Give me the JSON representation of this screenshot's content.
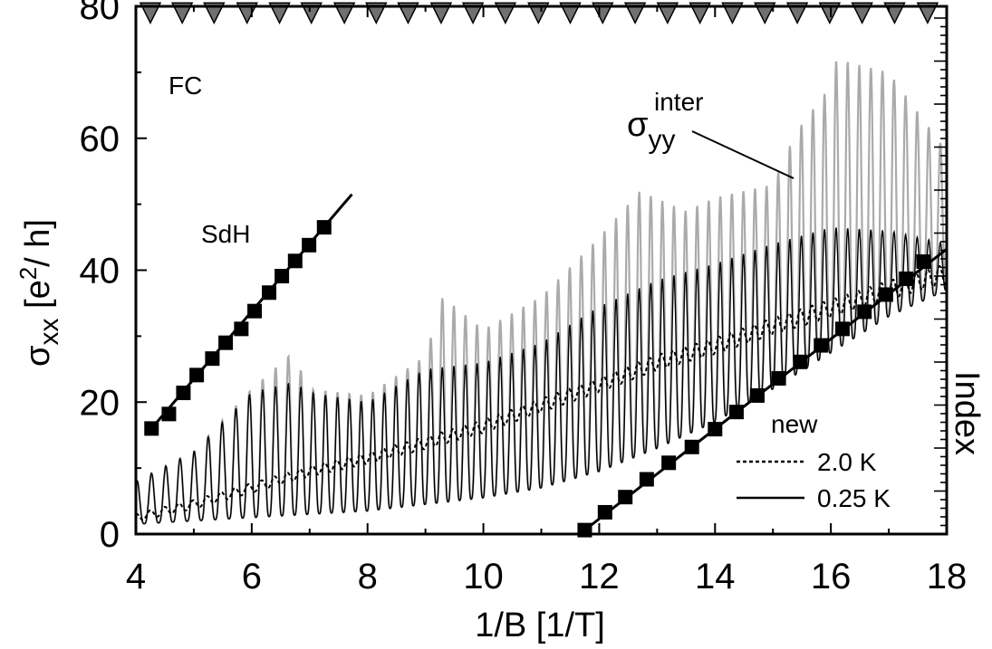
{
  "chart_data": {
    "type": "line",
    "xlabel": "1/B [1/T]",
    "ylabel_main": "σ",
    "ylabel_sub": "xx",
    "ylabel_unit_pre": " [e",
    "ylabel_unit_sup": "2",
    "ylabel_unit_post": "/ h]",
    "right_axis_label": "Index",
    "xlim": [
      4,
      18
    ],
    "ylim": [
      0,
      80
    ],
    "x_ticks": [
      4,
      6,
      8,
      10,
      12,
      14,
      16,
      18
    ],
    "y_ticks": [
      0,
      20,
      40,
      60,
      80
    ],
    "x_tick_labels": [
      "4",
      "6",
      "8",
      "10",
      "12",
      "14",
      "16",
      "18"
    ],
    "y_tick_labels": [
      "0",
      "20",
      "40",
      "60",
      "80"
    ],
    "annotations": {
      "fc": "FC",
      "sdh": "SdH",
      "sigma_yy_main": "σ",
      "sigma_yy_sub": "yy",
      "sigma_yy_sup": "inter",
      "legend_title": "new"
    },
    "legend": [
      {
        "label": "2.0 K",
        "style": "dotted"
      },
      {
        "label": "0.25 K",
        "style": "solid"
      }
    ],
    "fc_markers_x": [
      4.25,
      4.8,
      5.35,
      5.92,
      6.48,
      7.03,
      7.6,
      8.15,
      8.7,
      9.27,
      9.82,
      10.38,
      10.95,
      11.5,
      12.06,
      12.62,
      13.18,
      13.74,
      14.3,
      14.86,
      15.42,
      15.98,
      16.54,
      17.1,
      17.67
    ],
    "fc_markers_y": 79,
    "sdh_series": {
      "x": [
        4.27,
        4.57,
        4.82,
        5.05,
        5.32,
        5.55,
        5.82,
        6.05,
        6.3,
        6.52,
        6.75,
        6.99,
        7.25
      ],
      "y": [
        16.0,
        18.2,
        21.4,
        24.1,
        26.6,
        29.0,
        31.1,
        33.8,
        36.6,
        39.1,
        41.4,
        43.8,
        46.5
      ],
      "line": [
        [
          4.27,
          16.0
        ],
        [
          7.73,
          51.5
        ]
      ]
    },
    "new_series": {
      "x": [
        11.75,
        12.1,
        12.45,
        12.82,
        13.2,
        13.6,
        14.0,
        14.37,
        14.73,
        15.1,
        15.47,
        15.83,
        16.2,
        16.58,
        16.95,
        17.3,
        17.6
      ],
      "y": [
        0.6,
        3.3,
        5.6,
        8.3,
        10.8,
        13.2,
        15.9,
        18.5,
        21.0,
        23.6,
        26.1,
        28.6,
        31.1,
        33.7,
        36.3,
        38.7,
        41.3
      ],
      "line": [
        [
          11.75,
          0.6
        ],
        [
          18.0,
          43.2
        ]
      ]
    },
    "oscillation_traces": [
      {
        "name": "2.0 K",
        "style": "dotted",
        "x": [
          4.0,
          5.0,
          6.0,
          7.0,
          8.0,
          9.0,
          10.0,
          11.0,
          12.0,
          13.0,
          14.0,
          15.0,
          16.0,
          17.0,
          18.0
        ],
        "y": [
          2.5,
          4.5,
          7.0,
          9.5,
          11.5,
          13.8,
          16.3,
          19.5,
          22.6,
          26.0,
          28.5,
          31.5,
          34.2,
          37.0,
          39.5
        ]
      },
      {
        "name": "0.25 K",
        "style": "solid",
        "period_x": [
          4.0,
          5.5,
          6.5,
          8.0,
          10.0,
          12.0,
          14.0,
          16.0,
          18.0
        ],
        "period": [
          0.25,
          0.24,
          0.22,
          0.2,
          0.2,
          0.2,
          0.2,
          0.2,
          0.2
        ],
        "upper_x": [
          4.0,
          5.0,
          6.0,
          6.7,
          7.0,
          8.0,
          9.0,
          10.0,
          11.0,
          12.0,
          13.0,
          14.0,
          15.0,
          16.0,
          17.0,
          18.0
        ],
        "upper_y": [
          8.0,
          12.5,
          21.5,
          23.0,
          21.5,
          20.0,
          25.0,
          26.0,
          29.0,
          34.5,
          38.5,
          41.0,
          44.0,
          46.5,
          46.0,
          44.0
        ],
        "lower_x": [
          4.0,
          5.0,
          6.0,
          7.0,
          8.0,
          9.0,
          10.0,
          11.0,
          12.0,
          13.0,
          14.0,
          15.0,
          16.0,
          17.0,
          18.0
        ],
        "lower_y": [
          1.5,
          2.0,
          2.5,
          3.0,
          3.5,
          4.5,
          5.5,
          7.0,
          9.5,
          13.0,
          17.0,
          22.0,
          27.5,
          33.0,
          37.0
        ]
      },
      {
        "name": "σyy inter",
        "style": "solid",
        "color": "#aaaaaa",
        "upper_x": [
          4.0,
          5.0,
          6.0,
          6.7,
          7.0,
          8.0,
          9.0,
          9.3,
          10.0,
          11.0,
          12.0,
          12.7,
          13.5,
          14.0,
          15.0,
          15.4,
          16.0,
          16.1,
          17.0,
          18.0
        ],
        "upper_y": [
          8.0,
          12.5,
          22.0,
          27.5,
          22.0,
          21.0,
          27.0,
          36.0,
          31.0,
          36.0,
          45.0,
          52.0,
          49.0,
          51.0,
          53.0,
          61.0,
          68.0,
          72.0,
          70.0,
          58.0
        ]
      }
    ],
    "colors": {
      "axis": "#000000",
      "trace_025K": "#000000",
      "trace_inter": "#aaaaaa",
      "fc_marker_fill": "#707070",
      "square_marker": "#000000"
    }
  }
}
